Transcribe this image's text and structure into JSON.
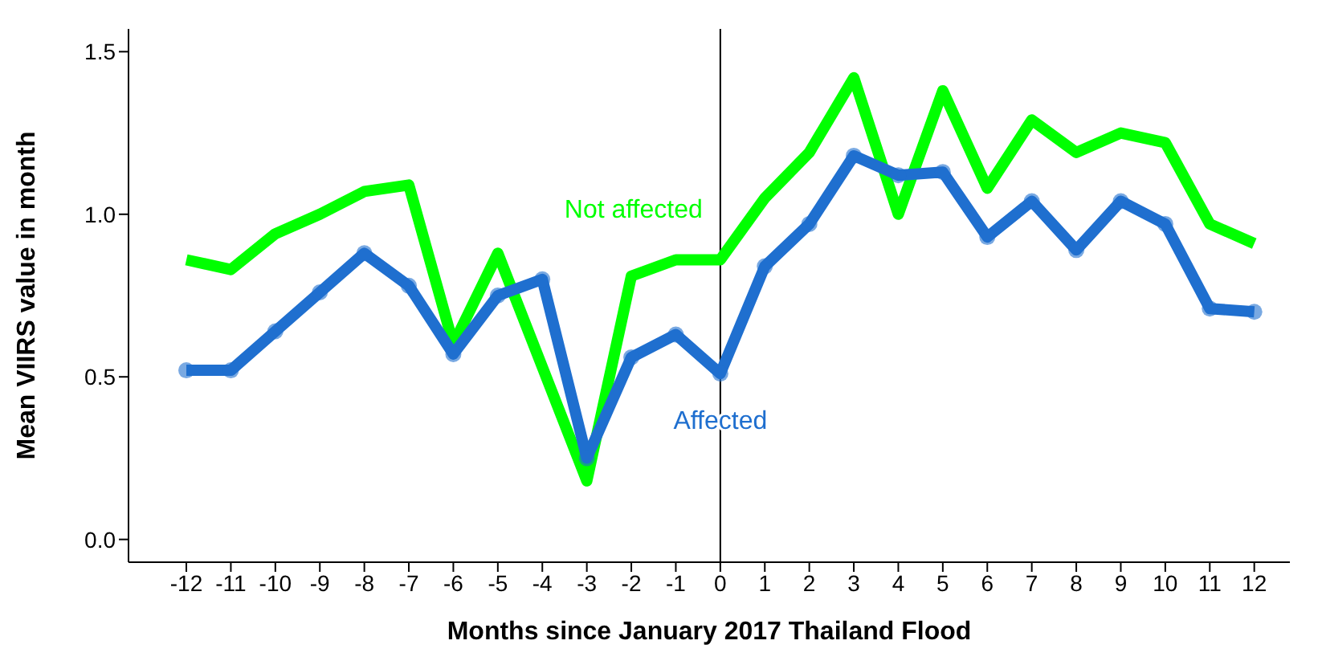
{
  "chart_data": {
    "type": "line",
    "xlabel": "Months since January 2017 Thailand Flood",
    "ylabel": "Mean VIIRS value in month",
    "x": [
      -12,
      -11,
      -10,
      -9,
      -8,
      -7,
      -6,
      -5,
      -4,
      -3,
      -2,
      -1,
      0,
      1,
      2,
      3,
      4,
      5,
      6,
      7,
      8,
      9,
      10,
      11,
      12
    ],
    "series": [
      {
        "name": "Not affected",
        "color": "#00ff00",
        "marker": "none",
        "values": [
          0.86,
          0.83,
          0.94,
          1.0,
          1.07,
          1.09,
          0.6,
          0.88,
          0.53,
          0.18,
          0.81,
          0.86,
          0.86,
          1.05,
          1.19,
          1.42,
          1.0,
          1.38,
          1.08,
          1.29,
          1.19,
          1.25,
          1.22,
          0.97,
          0.91
        ]
      },
      {
        "name": "Affected",
        "color": "#1f6fcf",
        "marker": "circle",
        "values": [
          0.52,
          0.52,
          0.64,
          0.76,
          0.88,
          0.78,
          0.57,
          0.75,
          0.8,
          0.25,
          0.56,
          0.63,
          0.51,
          0.84,
          0.97,
          1.18,
          1.12,
          1.13,
          0.93,
          1.04,
          0.89,
          1.04,
          0.97,
          0.71,
          0.7
        ]
      }
    ],
    "xlim": [
      -13.3,
      12.8
    ],
    "xticks": [
      -12,
      -11,
      -10,
      -9,
      -8,
      -7,
      -6,
      -5,
      -4,
      -3,
      -2,
      -1,
      0,
      1,
      2,
      3,
      4,
      5,
      6,
      7,
      8,
      9,
      10,
      11,
      12
    ],
    "ylim": [
      -0.07,
      1.57
    ],
    "yticks": [
      {
        "value": 0,
        "label": "0.0"
      },
      0.5,
      {
        "value": 1,
        "label": "1.0"
      },
      1.5
    ],
    "ref_lines": [
      {
        "axis": "x",
        "value": 0,
        "color": "#000000"
      }
    ],
    "grid": false,
    "legend": false,
    "line_style": "solid"
  }
}
